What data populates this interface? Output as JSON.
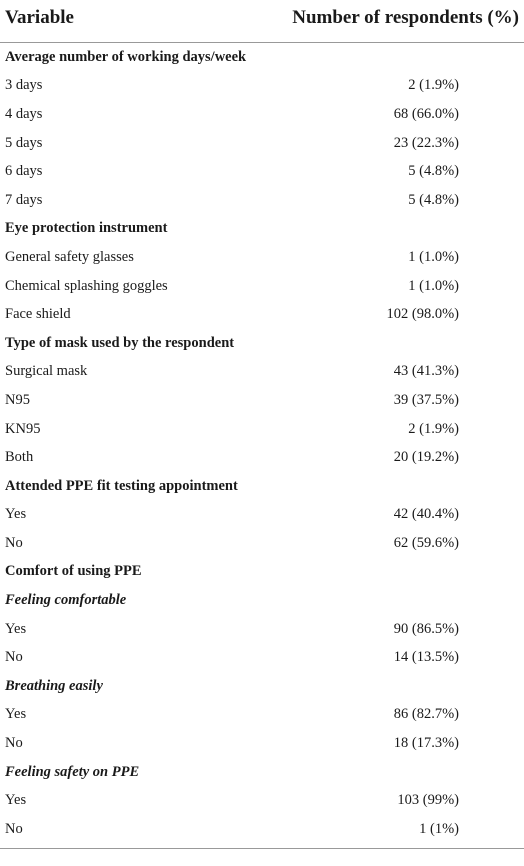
{
  "header": {
    "variable": "Variable",
    "count": "Number of respondents (%)"
  },
  "rows": [
    {
      "kind": "section",
      "label": "Average number of working days/week",
      "value": ""
    },
    {
      "kind": "item",
      "label": "3 days",
      "value": "2 (1.9%)"
    },
    {
      "kind": "item",
      "label": "4 days",
      "value": "68 (66.0%)"
    },
    {
      "kind": "item",
      "label": "5 days",
      "value": "23 (22.3%)"
    },
    {
      "kind": "item",
      "label": "6 days",
      "value": "5 (4.8%)"
    },
    {
      "kind": "item",
      "label": "7 days",
      "value": "5 (4.8%)"
    },
    {
      "kind": "section",
      "label": "Eye protection instrument",
      "value": ""
    },
    {
      "kind": "item",
      "label": "General safety glasses",
      "value": "1 (1.0%)"
    },
    {
      "kind": "item",
      "label": "Chemical splashing goggles",
      "value": "1 (1.0%)"
    },
    {
      "kind": "item",
      "label": "Face shield",
      "value": "102 (98.0%)"
    },
    {
      "kind": "section",
      "label": "Type of mask used by the respondent",
      "value": ""
    },
    {
      "kind": "item",
      "label": "Surgical mask",
      "value": "43 (41.3%)"
    },
    {
      "kind": "item",
      "label": "N95",
      "value": "39 (37.5%)"
    },
    {
      "kind": "item",
      "label": "KN95",
      "value": "2 (1.9%)"
    },
    {
      "kind": "item",
      "label": "Both",
      "value": "20 (19.2%)"
    },
    {
      "kind": "section",
      "label": "Attended PPE fit testing appointment",
      "value": ""
    },
    {
      "kind": "item",
      "label": "Yes",
      "value": "42 (40.4%)"
    },
    {
      "kind": "item",
      "label": "No",
      "value": "62 (59.6%)"
    },
    {
      "kind": "section",
      "label": "Comfort of using PPE",
      "value": ""
    },
    {
      "kind": "subsection",
      "label": "Feeling comfortable",
      "value": ""
    },
    {
      "kind": "item",
      "label": "Yes",
      "value": "90 (86.5%)"
    },
    {
      "kind": "item",
      "label": "No",
      "value": "14 (13.5%)"
    },
    {
      "kind": "subsection",
      "label": "Breathing easily",
      "value": ""
    },
    {
      "kind": "item",
      "label": "Yes",
      "value": "86 (82.7%)"
    },
    {
      "kind": "item",
      "label": "No",
      "value": "18 (17.3%)"
    },
    {
      "kind": "subsection",
      "label": "Feeling safety on PPE",
      "value": ""
    },
    {
      "kind": "item",
      "label": "Yes",
      "value": "103 (99%)"
    },
    {
      "kind": "item",
      "label": "No",
      "value": "1 (1%)"
    }
  ]
}
